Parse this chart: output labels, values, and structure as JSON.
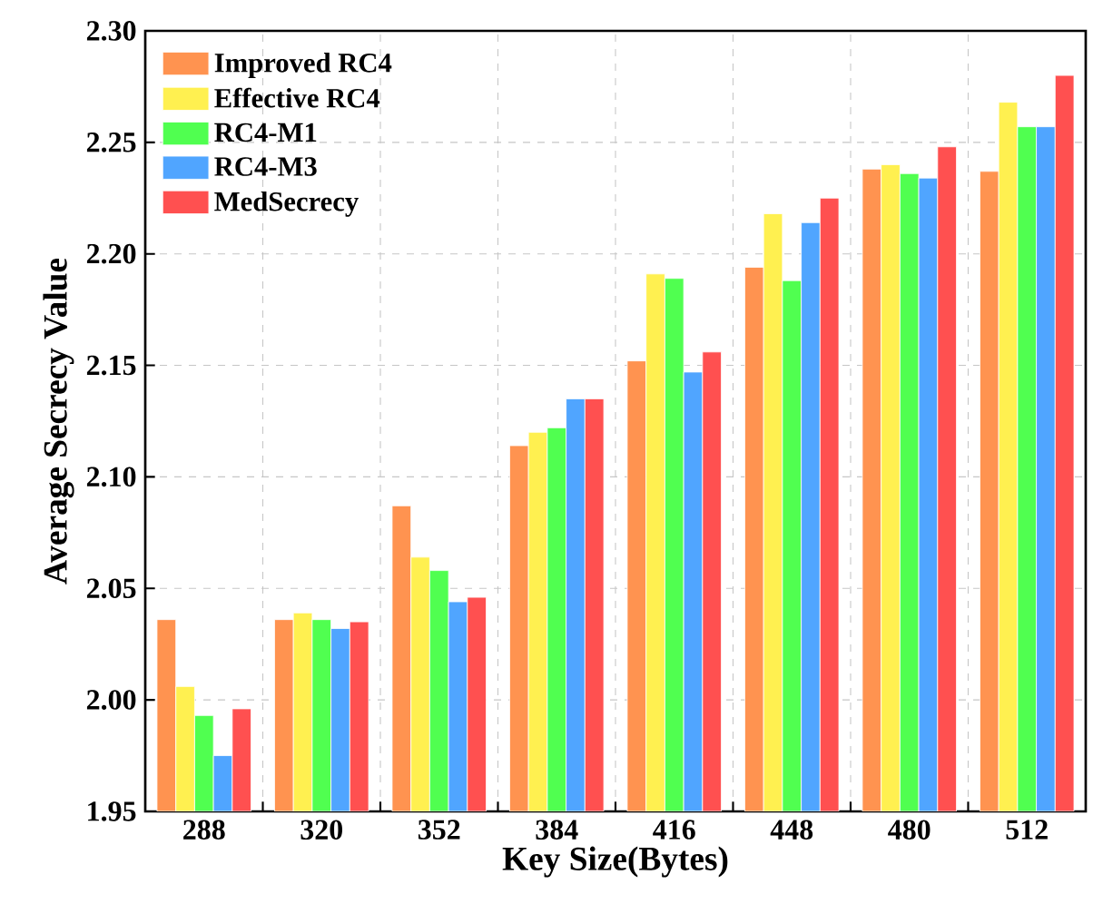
{
  "chart_data": {
    "type": "bar",
    "xlabel": "Key Size(Bytes)",
    "ylabel": "Average Secrecy Value",
    "categories": [
      "288",
      "320",
      "352",
      "384",
      "416",
      "448",
      "480",
      "512"
    ],
    "series": [
      {
        "name": "Improved RC4",
        "color": "#ff9350",
        "values": [
          2.036,
          2.036,
          2.087,
          2.114,
          2.152,
          2.194,
          2.238,
          2.237
        ]
      },
      {
        "name": "Effective RC4",
        "color": "#fff050",
        "values": [
          2.006,
          2.039,
          2.064,
          2.12,
          2.191,
          2.218,
          2.24,
          2.268
        ]
      },
      {
        "name": "RC4-M1",
        "color": "#50ff50",
        "values": [
          1.993,
          2.036,
          2.058,
          2.122,
          2.189,
          2.188,
          2.236,
          2.257
        ]
      },
      {
        "name": "RC4-M3",
        "color": "#50a5ff",
        "values": [
          1.975,
          2.032,
          2.044,
          2.135,
          2.147,
          2.214,
          2.234,
          2.257
        ]
      },
      {
        "name": "MedSecrecy",
        "color": "#ff5050",
        "values": [
          1.996,
          2.035,
          2.046,
          2.135,
          2.156,
          2.225,
          2.248,
          2.28
        ]
      }
    ],
    "ylim": [
      1.95,
      2.3
    ],
    "yticks": [
      1.95,
      {
        "value": 2.0,
        "label": "2.00"
      },
      2.05,
      {
        "value": 2.1,
        "label": "2.10"
      },
      2.15,
      {
        "value": 2.2,
        "label": "2.20"
      },
      2.25,
      {
        "value": 2.3,
        "label": "2.30"
      }
    ],
    "grid": true,
    "legend": "top left"
  }
}
